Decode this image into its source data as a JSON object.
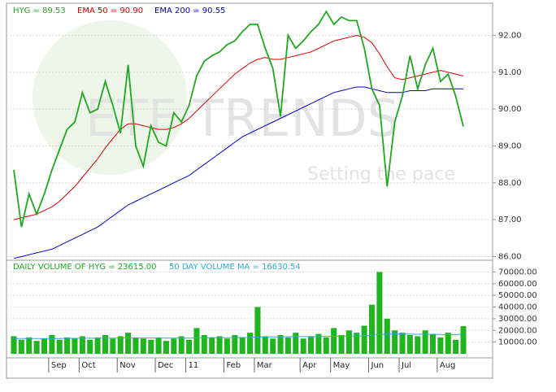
{
  "watermark": {
    "title": "ETF TRENDS",
    "subtitle": "Setting the pace"
  },
  "chart_data": [
    {
      "type": "line",
      "ylim": [
        85.9,
        92.85
      ],
      "yticks": [
        {
          "value": 86,
          "label": "86.00"
        },
        {
          "value": 87,
          "label": "87.00"
        },
        {
          "value": 88,
          "label": "88.00"
        },
        {
          "value": 89,
          "label": "89.00"
        },
        {
          "value": 90,
          "label": "90.00"
        },
        {
          "value": 91,
          "label": "91.00"
        },
        {
          "value": 92,
          "label": "92.00"
        }
      ],
      "grid": true,
      "series": [
        {
          "name": "HYG = 89.53",
          "color": "#1fa81f",
          "values": [
            88.35,
            86.8,
            87.7,
            87.15,
            87.7,
            88.35,
            88.9,
            89.45,
            89.65,
            90.45,
            89.9,
            90.0,
            90.75,
            90.1,
            89.35,
            91.2,
            89.0,
            88.45,
            89.55,
            89.1,
            89.0,
            89.9,
            89.65,
            90.1,
            90.9,
            91.3,
            91.45,
            91.55,
            91.75,
            91.85,
            92.1,
            92.3,
            92.3,
            91.65,
            91.1,
            89.8,
            92.0,
            91.65,
            91.85,
            92.1,
            92.3,
            92.65,
            92.3,
            92.5,
            92.4,
            92.4,
            91.65,
            90.55,
            90.1,
            87.9,
            89.65,
            90.35,
            91.45,
            90.55,
            91.2,
            91.65,
            90.75,
            90.95,
            90.35,
            89.53
          ]
        },
        {
          "name": "EMA 50 = 90.90",
          "color": "#dd0000",
          "values": [
            87.0,
            87.05,
            87.1,
            87.15,
            87.25,
            87.35,
            87.5,
            87.7,
            87.9,
            88.15,
            88.4,
            88.65,
            88.95,
            89.2,
            89.45,
            89.6,
            89.6,
            89.55,
            89.5,
            89.45,
            89.45,
            89.5,
            89.6,
            89.75,
            89.95,
            90.15,
            90.35,
            90.55,
            90.75,
            90.95,
            91.1,
            91.25,
            91.35,
            91.4,
            91.35,
            91.35,
            91.4,
            91.45,
            91.5,
            91.55,
            91.65,
            91.75,
            91.85,
            91.9,
            91.95,
            92.0,
            91.95,
            91.8,
            91.5,
            91.15,
            90.85,
            90.8,
            90.85,
            90.9,
            90.95,
            91.0,
            91.05,
            91.0,
            90.95,
            90.9
          ]
        },
        {
          "name": "EMA 200 = 90.55",
          "color": "#0000cc",
          "values": [
            85.95,
            86.0,
            86.05,
            86.1,
            86.15,
            86.2,
            86.3,
            86.4,
            86.5,
            86.6,
            86.7,
            86.8,
            86.95,
            87.1,
            87.25,
            87.4,
            87.5,
            87.6,
            87.7,
            87.8,
            87.9,
            88.0,
            88.1,
            88.2,
            88.35,
            88.5,
            88.65,
            88.8,
            88.95,
            89.1,
            89.25,
            89.35,
            89.45,
            89.55,
            89.65,
            89.75,
            89.85,
            89.95,
            90.05,
            90.15,
            90.25,
            90.35,
            90.45,
            90.5,
            90.55,
            90.6,
            90.6,
            90.55,
            90.5,
            90.45,
            90.45,
            90.45,
            90.5,
            90.5,
            90.5,
            90.55,
            90.55,
            90.55,
            90.55,
            90.55
          ]
        }
      ]
    },
    {
      "type": "bar",
      "ylim": [
        0,
        80000
      ],
      "yticks": [
        {
          "value": 10000,
          "label": "10000.00"
        },
        {
          "value": 20000,
          "label": "20000.00"
        },
        {
          "value": 30000,
          "label": "30000.00"
        },
        {
          "value": 40000,
          "label": "40000.00"
        },
        {
          "value": 50000,
          "label": "50000.00"
        },
        {
          "value": 60000,
          "label": "60000.00"
        },
        {
          "value": 70000,
          "label": "70000.00"
        }
      ],
      "grid": true,
      "categories": [
        null,
        null,
        null,
        null,
        null,
        "Sep",
        null,
        null,
        null,
        "Oct",
        null,
        null,
        null,
        null,
        "Nov",
        null,
        null,
        null,
        null,
        "Dec",
        null,
        null,
        null,
        "11",
        null,
        null,
        null,
        null,
        "Feb",
        null,
        null,
        null,
        "Mar",
        null,
        null,
        null,
        null,
        null,
        "Apr",
        null,
        null,
        null,
        "May",
        null,
        null,
        null,
        null,
        "Jun",
        null,
        null,
        null,
        "Jul",
        null,
        null,
        null,
        null,
        "Aug",
        null,
        null,
        null
      ],
      "series": [
        {
          "name": "DAILY VOLUME OF HYG = 23615.00",
          "color": "#1fb51f",
          "values": [
            15000,
            12000,
            14000,
            11000,
            13000,
            16000,
            12000,
            14000,
            13000,
            15000,
            12000,
            14000,
            16000,
            13000,
            15000,
            18000,
            14000,
            13000,
            12000,
            14000,
            11000,
            13000,
            15000,
            12000,
            22000,
            16000,
            14000,
            15000,
            13000,
            16000,
            14000,
            18000,
            40000,
            15000,
            13000,
            16000,
            14000,
            18000,
            13000,
            15000,
            17000,
            14000,
            22000,
            16000,
            20000,
            18000,
            24000,
            42000,
            70000,
            30000,
            20000,
            18000,
            16000,
            15000,
            20000,
            17000,
            14000,
            18000,
            12000,
            23615
          ]
        },
        {
          "name": "50 DAY VOLUME MA = 16630.54",
          "color": "#33aacc",
          "type": "line",
          "values": [
            13000,
            13000,
            13000,
            13000,
            13000,
            13100,
            13100,
            13200,
            13200,
            13300,
            13300,
            13300,
            13400,
            13400,
            13400,
            13500,
            13500,
            13500,
            13500,
            13500,
            13400,
            13400,
            13400,
            13400,
            13600,
            13700,
            13700,
            13800,
            13800,
            13900,
            13900,
            14000,
            14500,
            14500,
            14500,
            14600,
            14600,
            14700,
            14700,
            14700,
            14800,
            14800,
            15000,
            15000,
            15100,
            15200,
            15300,
            15800,
            16500,
            16800,
            16900,
            16900,
            16800,
            16700,
            16700,
            16600,
            16500,
            16500,
            16400,
            16630.54
          ]
        }
      ]
    }
  ]
}
